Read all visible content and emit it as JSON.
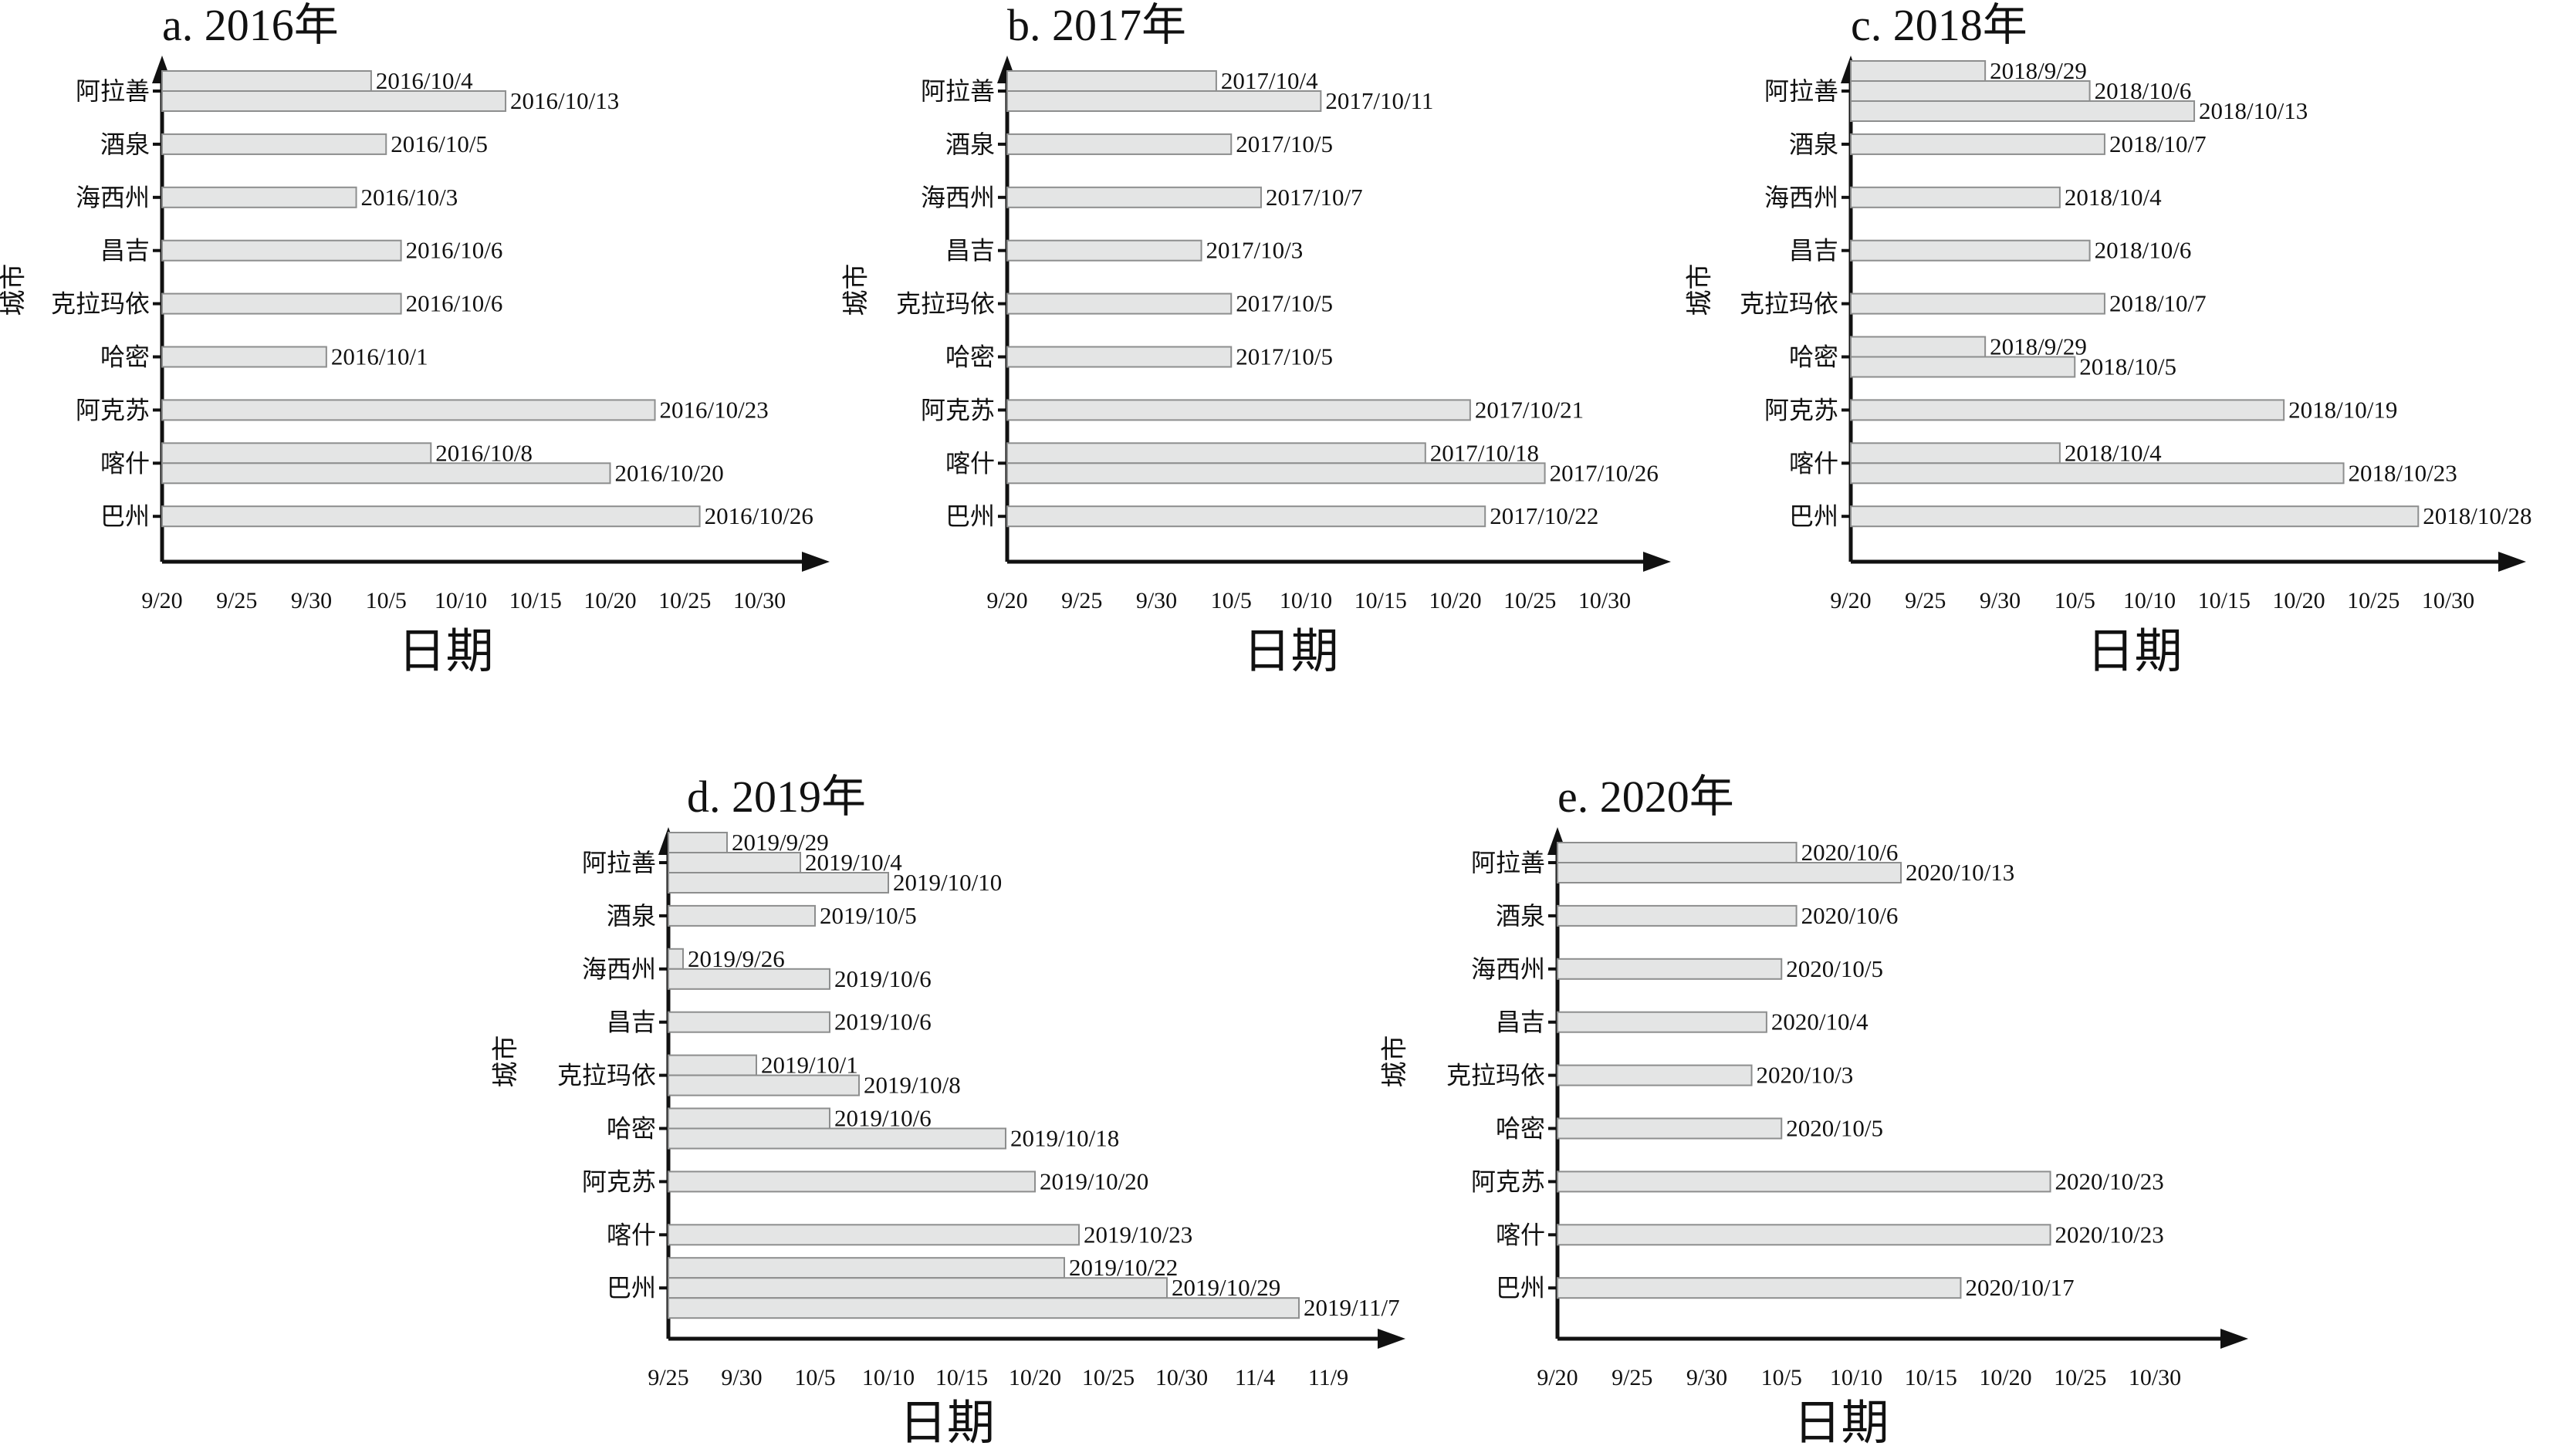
{
  "chart_data": [
    {
      "type": "bar",
      "orientation": "horizontal",
      "title": "a. 2016年",
      "xlabel": "日期",
      "ylabel": "城市",
      "x_ticks": [
        "9/20",
        "9/25",
        "9/30",
        "10/5",
        "10/10",
        "10/15",
        "10/20",
        "10/25",
        "10/30"
      ],
      "x_tick_days": [
        0,
        5,
        10,
        15,
        20,
        25,
        30,
        35,
        40
      ],
      "x_origin": "9/20",
      "categories": [
        {
          "name": "阿拉善",
          "bars": [
            {
              "label": "2016/10/4",
              "day": 14
            },
            {
              "label": "2016/10/13",
              "day": 23
            }
          ]
        },
        {
          "name": "酒泉",
          "bars": [
            {
              "label": "2016/10/5",
              "day": 15
            }
          ]
        },
        {
          "name": "海西州",
          "bars": [
            {
              "label": "2016/10/3",
              "day": 13
            }
          ]
        },
        {
          "name": "昌吉",
          "bars": [
            {
              "label": "2016/10/6",
              "day": 16
            }
          ]
        },
        {
          "name": "克拉玛依",
          "bars": [
            {
              "label": "2016/10/6",
              "day": 16
            }
          ]
        },
        {
          "name": "哈密",
          "bars": [
            {
              "label": "2016/10/1",
              "day": 11
            }
          ]
        },
        {
          "name": "阿克苏",
          "bars": [
            {
              "label": "2016/10/23",
              "day": 33
            }
          ]
        },
        {
          "name": "喀什",
          "bars": [
            {
              "label": "2016/10/8",
              "day": 18
            },
            {
              "label": "2016/10/20",
              "day": 30
            }
          ]
        },
        {
          "name": "巴州",
          "bars": [
            {
              "label": "2016/10/26",
              "day": 36
            }
          ]
        }
      ]
    },
    {
      "type": "bar",
      "orientation": "horizontal",
      "title": "b. 2017年",
      "xlabel": "日期",
      "ylabel": "城市",
      "x_ticks": [
        "9/20",
        "9/25",
        "9/30",
        "10/5",
        "10/10",
        "10/15",
        "10/20",
        "10/25",
        "10/30"
      ],
      "x_tick_days": [
        0,
        5,
        10,
        15,
        20,
        25,
        30,
        35,
        40
      ],
      "x_origin": "9/20",
      "categories": [
        {
          "name": "阿拉善",
          "bars": [
            {
              "label": "2017/10/4",
              "day": 14
            },
            {
              "label": "2017/10/11",
              "day": 21
            }
          ]
        },
        {
          "name": "酒泉",
          "bars": [
            {
              "label": "2017/10/5",
              "day": 15
            }
          ]
        },
        {
          "name": "海西州",
          "bars": [
            {
              "label": "2017/10/7",
              "day": 17
            }
          ]
        },
        {
          "name": "昌吉",
          "bars": [
            {
              "label": "2017/10/3",
              "day": 13
            }
          ]
        },
        {
          "name": "克拉玛依",
          "bars": [
            {
              "label": "2017/10/5",
              "day": 15
            }
          ]
        },
        {
          "name": "哈密",
          "bars": [
            {
              "label": "2017/10/5",
              "day": 15
            }
          ]
        },
        {
          "name": "阿克苏",
          "bars": [
            {
              "label": "2017/10/21",
              "day": 31
            }
          ]
        },
        {
          "name": "喀什",
          "bars": [
            {
              "label": "2017/10/18",
              "day": 28
            },
            {
              "label": "2017/10/26",
              "day": 36
            }
          ]
        },
        {
          "name": "巴州",
          "bars": [
            {
              "label": "2017/10/22",
              "day": 32
            }
          ]
        }
      ]
    },
    {
      "type": "bar",
      "orientation": "horizontal",
      "title": "c. 2018年",
      "xlabel": "日期",
      "ylabel": "城市",
      "x_ticks": [
        "9/20",
        "9/25",
        "9/30",
        "10/5",
        "10/10",
        "10/15",
        "10/20",
        "10/25",
        "10/30"
      ],
      "x_tick_days": [
        0,
        5,
        10,
        15,
        20,
        25,
        30,
        35,
        40
      ],
      "x_origin": "9/20",
      "categories": [
        {
          "name": "阿拉善",
          "bars": [
            {
              "label": "2018/9/29",
              "day": 9
            },
            {
              "label": "2018/10/6",
              "day": 16
            },
            {
              "label": "2018/10/13",
              "day": 23
            }
          ]
        },
        {
          "name": "酒泉",
          "bars": [
            {
              "label": "2018/10/7",
              "day": 17
            }
          ]
        },
        {
          "name": "海西州",
          "bars": [
            {
              "label": "2018/10/4",
              "day": 14
            }
          ]
        },
        {
          "name": "昌吉",
          "bars": [
            {
              "label": "2018/10/6",
              "day": 16
            }
          ]
        },
        {
          "name": "克拉玛依",
          "bars": [
            {
              "label": "2018/10/7",
              "day": 17
            }
          ]
        },
        {
          "name": "哈密",
          "bars": [
            {
              "label": "2018/9/29",
              "day": 9
            },
            {
              "label": "2018/10/5",
              "day": 15
            }
          ]
        },
        {
          "name": "阿克苏",
          "bars": [
            {
              "label": "2018/10/19",
              "day": 29
            }
          ]
        },
        {
          "name": "喀什",
          "bars": [
            {
              "label": "2018/10/4",
              "day": 14
            },
            {
              "label": "2018/10/23",
              "day": 33
            }
          ]
        },
        {
          "name": "巴州",
          "bars": [
            {
              "label": "2018/10/28",
              "day": 38
            }
          ]
        }
      ]
    },
    {
      "type": "bar",
      "orientation": "horizontal",
      "title": "d. 2019年",
      "xlabel": "日期",
      "ylabel": "城市",
      "x_ticks": [
        "9/25",
        "9/30",
        "10/5",
        "10/10",
        "10/15",
        "10/20",
        "10/25",
        "10/30",
        "11/4",
        "11/9"
      ],
      "x_tick_days": [
        0,
        5,
        10,
        15,
        20,
        25,
        30,
        35,
        40,
        45
      ],
      "x_origin": "9/25",
      "categories": [
        {
          "name": "阿拉善",
          "bars": [
            {
              "label": "2019/9/29",
              "day": 4
            },
            {
              "label": "2019/10/4",
              "day": 9
            },
            {
              "label": "2019/10/10",
              "day": 15
            }
          ]
        },
        {
          "name": "酒泉",
          "bars": [
            {
              "label": "2019/10/5",
              "day": 10
            }
          ]
        },
        {
          "name": "海西州",
          "bars": [
            {
              "label": "2019/9/26",
              "day": 1
            },
            {
              "label": "2019/10/6",
              "day": 11
            }
          ]
        },
        {
          "name": "昌吉",
          "bars": [
            {
              "label": "2019/10/6",
              "day": 11
            }
          ]
        },
        {
          "name": "克拉玛依",
          "bars": [
            {
              "label": "2019/10/1",
              "day": 6
            },
            {
              "label": "2019/10/8",
              "day": 13
            }
          ]
        },
        {
          "name": "哈密",
          "bars": [
            {
              "label": "2019/10/6",
              "day": 11
            },
            {
              "label": "2019/10/18",
              "day": 23
            }
          ]
        },
        {
          "name": "阿克苏",
          "bars": [
            {
              "label": "2019/10/20",
              "day": 25
            }
          ]
        },
        {
          "name": "喀什",
          "bars": [
            {
              "label": "2019/10/23",
              "day": 28
            }
          ]
        },
        {
          "name": "巴州",
          "bars": [
            {
              "label": "2019/10/22",
              "day": 27
            },
            {
              "label": "2019/10/29",
              "day": 34
            },
            {
              "label": "2019/11/7",
              "day": 43
            }
          ]
        }
      ]
    },
    {
      "type": "bar",
      "orientation": "horizontal",
      "title": "e. 2020年",
      "xlabel": "日期",
      "ylabel": "城市",
      "x_ticks": [
        "9/20",
        "9/25",
        "9/30",
        "10/5",
        "10/10",
        "10/15",
        "10/20",
        "10/25",
        "10/30"
      ],
      "x_tick_days": [
        0,
        5,
        10,
        15,
        20,
        25,
        30,
        35,
        40
      ],
      "x_origin": "9/20",
      "categories": [
        {
          "name": "阿拉善",
          "bars": [
            {
              "label": "2020/10/6",
              "day": 16
            },
            {
              "label": "2020/10/13",
              "day": 23
            }
          ]
        },
        {
          "name": "酒泉",
          "bars": [
            {
              "label": "2020/10/6",
              "day": 16
            }
          ]
        },
        {
          "name": "海西州",
          "bars": [
            {
              "label": "2020/10/5",
              "day": 15
            }
          ]
        },
        {
          "name": "昌吉",
          "bars": [
            {
              "label": "2020/10/4",
              "day": 14
            }
          ]
        },
        {
          "name": "克拉玛依",
          "bars": [
            {
              "label": "2020/10/3",
              "day": 13
            }
          ]
        },
        {
          "name": "哈密",
          "bars": [
            {
              "label": "2020/10/5",
              "day": 15
            }
          ]
        },
        {
          "name": "阿克苏",
          "bars": [
            {
              "label": "2020/10/23",
              "day": 33
            }
          ]
        },
        {
          "name": "喀什",
          "bars": [
            {
              "label": "2020/10/23",
              "day": 33
            }
          ]
        },
        {
          "name": "巴州",
          "bars": [
            {
              "label": "2020/10/17",
              "day": 27
            }
          ]
        }
      ]
    }
  ]
}
